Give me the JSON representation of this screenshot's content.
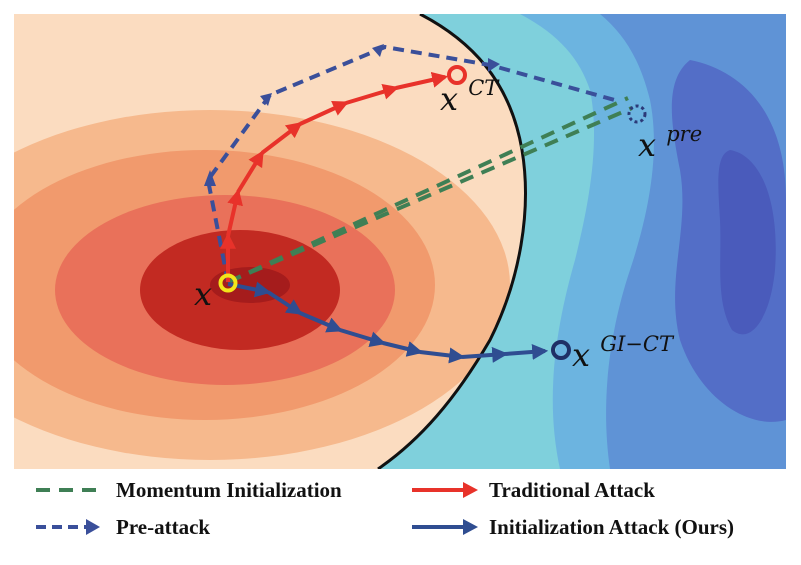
{
  "labels": {
    "x": "x",
    "x_ct_base": "x",
    "x_ct_sup": "CT",
    "x_pre_base": "x",
    "x_pre_sup": "pre",
    "x_gict_base": "x",
    "x_gict_sup": "GI−CT"
  },
  "legend": {
    "momentum": "Momentum Initialization",
    "preattack": "Pre-attack",
    "traditional": "Traditional Attack",
    "initialization": "Initialization Attack (Ours)"
  },
  "colors": {
    "traditional": "#e8322a",
    "preattack": "#3a4f9a",
    "initialization": "#2f4d91",
    "momentum": "#3f7f55",
    "start_marker": "#f2e51a",
    "boundary": "#111111"
  }
}
